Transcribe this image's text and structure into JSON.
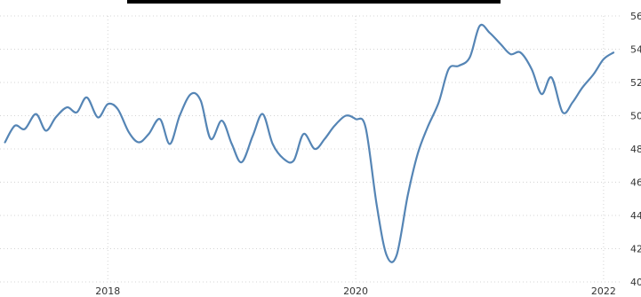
{
  "chart_data": {
    "type": "line",
    "grid": true,
    "legend": "none",
    "x_ticks": [
      "2018",
      "2020",
      "2022"
    ],
    "y_ticks": [
      "40",
      "42",
      "44",
      "46",
      "48",
      "50",
      "52",
      "54",
      "56"
    ],
    "ylim": [
      40,
      56
    ],
    "xlim": [
      2017.13,
      2022.13
    ],
    "series": [
      {
        "color": "#5585b5",
        "x": [
          2017.17,
          2017.25,
          2017.33,
          2017.42,
          2017.5,
          2017.58,
          2017.67,
          2017.75,
          2017.83,
          2017.92,
          2018.0,
          2018.08,
          2018.17,
          2018.25,
          2018.33,
          2018.42,
          2018.5,
          2018.58,
          2018.67,
          2018.75,
          2018.83,
          2018.92,
          2019.0,
          2019.08,
          2019.17,
          2019.25,
          2019.33,
          2019.42,
          2019.5,
          2019.58,
          2019.67,
          2019.75,
          2019.83,
          2019.92,
          2020.0,
          2020.08,
          2020.17,
          2020.25,
          2020.33,
          2020.42,
          2020.5,
          2020.58,
          2020.67,
          2020.75,
          2020.83,
          2020.92,
          2021.0,
          2021.08,
          2021.17,
          2021.25,
          2021.33,
          2021.42,
          2021.5,
          2021.58,
          2021.67,
          2021.75,
          2021.83,
          2021.92,
          2022.0,
          2022.08
        ],
        "y": [
          48.4,
          49.4,
          49.2,
          50.1,
          49.1,
          49.9,
          50.5,
          50.2,
          51.1,
          49.9,
          50.7,
          50.4,
          49.0,
          48.4,
          48.9,
          49.8,
          48.3,
          50.0,
          51.3,
          50.9,
          48.6,
          49.7,
          48.3,
          47.2,
          48.8,
          50.1,
          48.3,
          47.4,
          47.3,
          48.9,
          48.0,
          48.6,
          49.4,
          50.0,
          49.8,
          49.3,
          44.6,
          41.6,
          41.6,
          45.2,
          47.7,
          49.3,
          50.8,
          52.8,
          53.0,
          53.5,
          55.4,
          55.0,
          54.3,
          53.7,
          53.8,
          52.8,
          51.3,
          52.3,
          50.2,
          50.8,
          51.7,
          52.5,
          53.4,
          53.8
        ]
      }
    ]
  }
}
